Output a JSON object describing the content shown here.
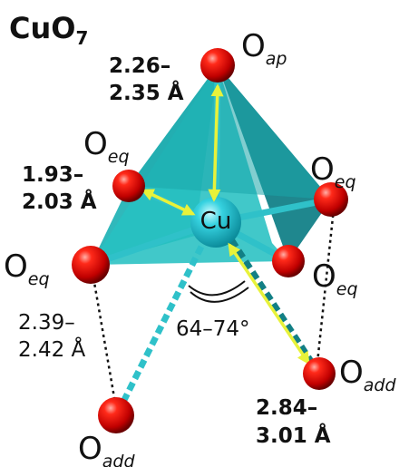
{
  "title": {
    "main": "CuO",
    "sub": "7"
  },
  "atoms": {
    "center": "Cu",
    "o_main": "O",
    "apical_sub": "ap",
    "equatorial_sub": "eq",
    "additional_sub": "add"
  },
  "distances": {
    "apical": [
      "2.26–",
      "2.35 Å"
    ],
    "equatorial": [
      "1.93–",
      "2.03 Å"
    ],
    "eq_to_add": [
      "2.39–",
      "2.42 Å"
    ],
    "additional": [
      "2.84–",
      "3.01 Å"
    ]
  },
  "angle": {
    "value": "64–74°"
  },
  "colors": {
    "polyhedron": "#1fb5b8",
    "polyhedron_dark": "#127f85",
    "cu": "#29c6d6",
    "oxygen": "#e01010",
    "arrow": "#e8f23a",
    "bond": "#2fc1c9"
  }
}
